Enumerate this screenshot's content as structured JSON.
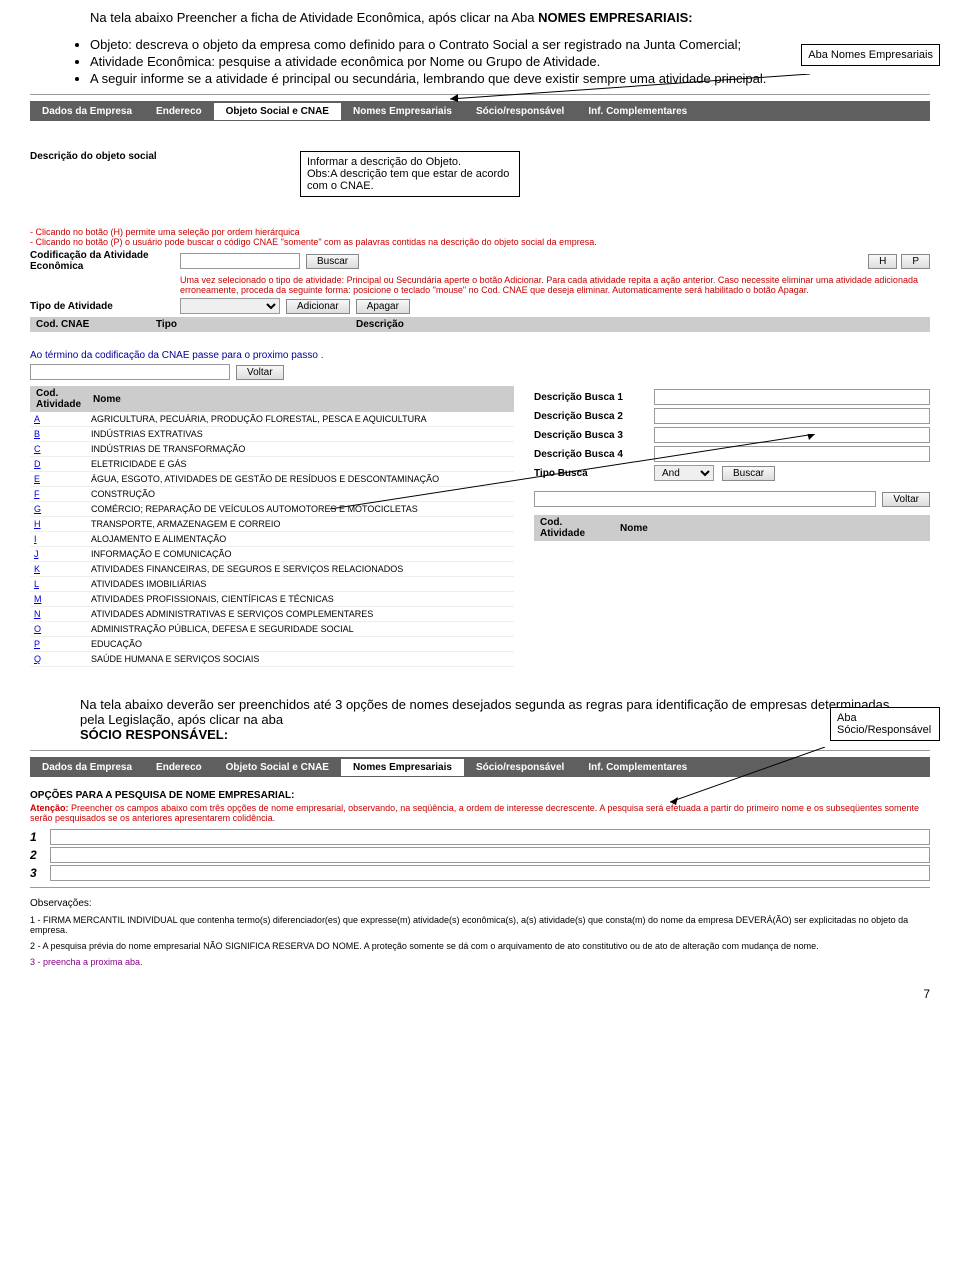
{
  "intro": {
    "line1_pre": "Na tela abaixo Preencher a ficha de Atividade Econômica, após clicar na Aba ",
    "line1_bold": "NOMES EMPRESARIAIS:",
    "bullet1": "Objeto: descreva o objeto da empresa como definido para o Contrato Social a ser registrado na Junta Comercial;",
    "bullet2": "Atividade Econômica: pesquise a atividade econômica por Nome ou Grupo de Atividade.",
    "bullet3": "A seguir informe se a atividade é principal ou secundária, lembrando que deve existir sempre uma atividade principal."
  },
  "callouts": {
    "c1": "Aba Nomes Empresariais",
    "c2_l1": "Informar a descrição do Objeto.",
    "c2_l2": "Obs:A descrição tem que estar de acordo com o CNAE.",
    "c3": "Aba Sócio/Responsável"
  },
  "tabs": {
    "t1": "Dados da Empresa",
    "t2": "Endereco",
    "t3": "Objeto Social e CNAE",
    "t4": "Nomes Empresariais",
    "t5": "Sócio/responsável",
    "t6": "Inf. Complementares"
  },
  "objeto": {
    "desc_label": "Descrição do objeto social",
    "help_h": "- Clicando no botão (H) permite uma seleção por ordem hierárquica",
    "help_p": "- Clicando no botão (P) o usuário pode buscar o código CNAE \"somente\" com as palavras contidas na descrição do objeto social da empresa.",
    "cod_label": "Codificação da Atividade Econômica",
    "buscar": "Buscar",
    "h": "H",
    "p": "P",
    "help_red1": "Uma vez selecionado o tipo de atividade: Principal ou Secundária aperte o botão Adicionar. Para cada atividade repita a ação anterior. Caso necessite eliminar uma atividade adicionada erroneamente, proceda da seguinte forma: posicione o teclado \"mouse\" no Cod. CNAE que deseja eliminar. Automaticamente será habilitado o botão Apagar.",
    "tipo_label": "Tipo de Atividade",
    "adicionar": "Adicionar",
    "apagar": "Apagar",
    "col_cod": "Cod. CNAE",
    "col_tipo": "Tipo",
    "col_desc": "Descrição",
    "termino": "Ao término da codificação da CNAE passe para o proximo passo .",
    "voltar": "Voltar"
  },
  "activities": {
    "col_cod": "Cod. Atividade",
    "col_nome": "Nome",
    "rows": [
      {
        "c": "A",
        "n": "AGRICULTURA, PECUÁRIA, PRODUÇÃO FLORESTAL, PESCA E AQUICULTURA"
      },
      {
        "c": "B",
        "n": "INDÚSTRIAS EXTRATIVAS"
      },
      {
        "c": "C",
        "n": "INDÚSTRIAS DE TRANSFORMAÇÃO"
      },
      {
        "c": "D",
        "n": "ELETRICIDADE E GÁS"
      },
      {
        "c": "E",
        "n": "ÁGUA, ESGOTO, ATIVIDADES DE GESTÃO DE RESÍDUOS E DESCONTAMINAÇÃO"
      },
      {
        "c": "F",
        "n": "CONSTRUÇÃO"
      },
      {
        "c": "G",
        "n": "COMÉRCIO; REPARAÇÃO DE VEÍCULOS AUTOMOTORES E MOTOCICLETAS"
      },
      {
        "c": "H",
        "n": "TRANSPORTE, ARMAZENAGEM E CORREIO"
      },
      {
        "c": "I",
        "n": "ALOJAMENTO E ALIMENTAÇÃO"
      },
      {
        "c": "J",
        "n": "INFORMAÇÃO E COMUNICAÇÃO"
      },
      {
        "c": "K",
        "n": "ATIVIDADES FINANCEIRAS, DE SEGUROS E SERVIÇOS RELACIONADOS"
      },
      {
        "c": "L",
        "n": "ATIVIDADES IMOBILIÁRIAS"
      },
      {
        "c": "M",
        "n": "ATIVIDADES PROFISSIONAIS, CIENTÍFICAS E TÉCNICAS"
      },
      {
        "c": "N",
        "n": "ATIVIDADES ADMINISTRATIVAS E SERVIÇOS COMPLEMENTARES"
      },
      {
        "c": "O",
        "n": "ADMINISTRAÇÃO PÚBLICA, DEFESA E SEGURIDADE SOCIAL"
      },
      {
        "c": "P",
        "n": "EDUCAÇÃO"
      },
      {
        "c": "Q",
        "n": "SAÚDE HUMANA E SERVIÇOS SOCIAIS"
      }
    ],
    "busca1": "Descrição Busca 1",
    "busca2": "Descrição Busca 2",
    "busca3": "Descrição Busca 3",
    "busca4": "Descrição Busca 4",
    "tipo_busca": "Tipo Busca",
    "and": "And",
    "buscar": "Buscar",
    "voltar": "Voltar",
    "cod_atividade": "Cod. Atividade",
    "nome": "Nome"
  },
  "nomes": {
    "intro_pre": "Na tela abaixo deverão ser preenchidos até 3 opções de nomes desejados segunda as regras para  identificação de empresas determinadas pela Legislação, após clicar na aba ",
    "intro_bold": "SÓCIO RESPONSÁVEL:",
    "opcoes_header": "OPÇÕES PARA A PESQUISA DE NOME EMPRESARIAL:",
    "atencao_label": "Atenção:",
    "atencao_text": " Preencher os campos abaixo com três opções de nome empresarial, observando, na seqüência, a ordem de interesse decrescente. A pesquisa será efetuada a partir do primeiro nome e os subseqüentes somente serão pesquisados se os anteriores apresentarem colidência.",
    "n1": "1",
    "n2": "2",
    "n3": "3",
    "obs_header": "Observações:",
    "obs1": "1  - FIRMA MERCANTIL INDIVIDUAL que contenha termo(s) diferenciador(es) que expresse(m) atividade(s) econômica(s), a(s) atividade(s) que consta(m) do nome da empresa DEVERÁ(ÃO) ser explicitadas no objeto da empresa.",
    "obs2": "2 - A pesquisa prévia do nome empresarial NÃO SIGNIFICA RESERVA DO NOME. A proteção  somente   se    dá  com o arquivamento de ato constitutivo ou de ato de alteração com mudança de nome.",
    "obs3": "3  - preencha a proxima aba."
  },
  "pagenum": "7"
}
